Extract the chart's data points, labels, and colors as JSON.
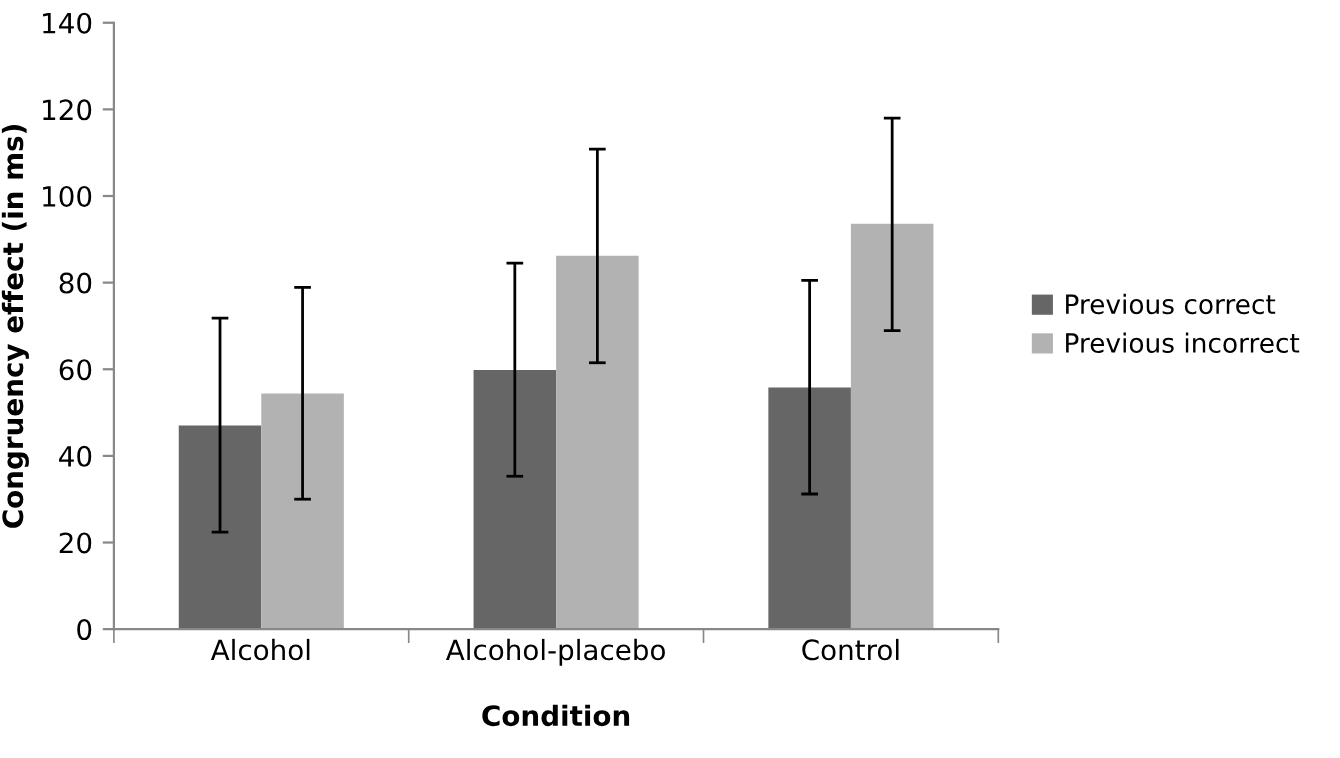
{
  "chart_data": {
    "type": "bar",
    "xlabel": "Condition",
    "ylabel": "Congruency effect (in ms)",
    "categories": [
      "Alcohol",
      "Alcohol-placebo",
      "Control"
    ],
    "series": [
      {
        "name": "Previous correct",
        "color": "#666666",
        "values": [
          47.0,
          59.8,
          55.8
        ],
        "errors": [
          [
            22.4,
            71.8
          ],
          [
            35.3,
            84.5
          ],
          [
            31.2,
            80.5
          ]
        ]
      },
      {
        "name": "Previous incorrect",
        "color": "#b2b2b2",
        "values": [
          54.4,
          86.2,
          93.6
        ],
        "errors": [
          [
            30.0,
            78.9
          ],
          [
            61.5,
            110.8
          ],
          [
            68.9,
            118.0
          ]
        ]
      }
    ],
    "ylim": [
      0,
      140
    ],
    "yticks": [
      0,
      20,
      40,
      60,
      80,
      100,
      120,
      140
    ],
    "grid": false,
    "legend": "right"
  }
}
